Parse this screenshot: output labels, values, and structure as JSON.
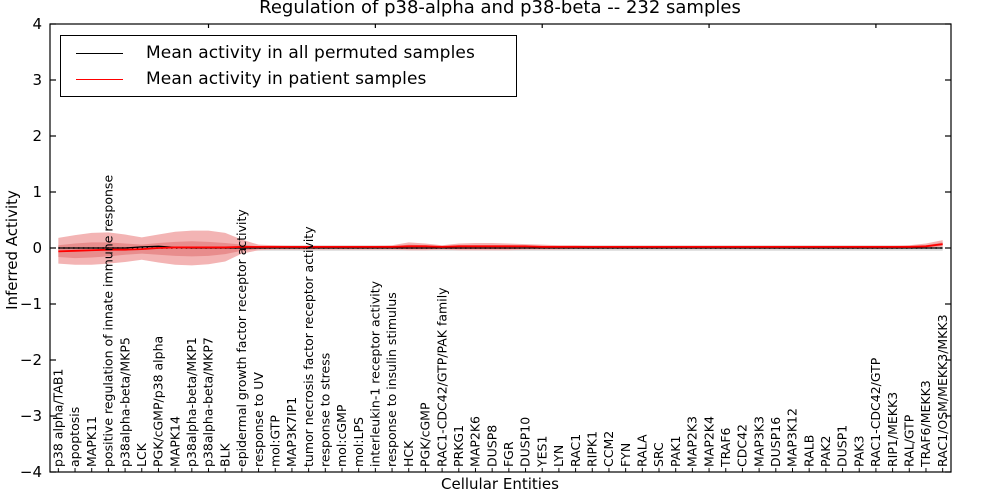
{
  "title": "Regulation of p38-alpha and p38-beta -- 232 samples",
  "axes": {
    "xlabel": "Cellular Entities",
    "ylabel": "Inferred Activity",
    "yticks": [
      4,
      3,
      2,
      1,
      0,
      -1,
      -2,
      -3,
      -4
    ],
    "ylim": [
      -4,
      4
    ]
  },
  "legend": {
    "items": [
      {
        "label": "Mean activity in all permuted samples",
        "color": "#000000"
      },
      {
        "label": "Mean activity in patient samples",
        "color": "#ff0000"
      }
    ],
    "position": "upper left"
  },
  "chart_data": {
    "type": "line",
    "title": "Regulation of p38-alpha and p38-beta -- 232 samples",
    "xlabel": "Cellular Entities",
    "ylabel": "Inferred Activity",
    "ylim": [
      -4,
      4
    ],
    "grid": false,
    "legend_position": "upper left",
    "categories": [
      "p38 alpha/TAB1",
      "apoptosis",
      "MAPK11",
      "positive regulation of innate immune response",
      "p38alpha-beta/MKP5",
      "LCK",
      "PGK/cGMP/p38 alpha",
      "MAPK14",
      "p38alpha-beta/MKP1",
      "p38alpha-beta/MKP7",
      "BLK",
      "epidermal growth factor receptor activity",
      "response to UV",
      "mol:GTP",
      "MAP3K7IP1",
      "tumor necrosis factor receptor activity",
      "response to stress",
      "mol:cGMP",
      "mol:LPS",
      "interleukin-1 receptor activity",
      "response to insulin stimulus",
      "HCK",
      "PGK/cGMP",
      "RAC1-CDC42/GTP/PAK family",
      "PRKG1",
      "MAP2K6",
      "DUSP8",
      "FGR",
      "DUSP10",
      "YES1",
      "LYN",
      "RAC1",
      "RIPK1",
      "CCM2",
      "FYN",
      "RALA",
      "SRC",
      "PAK1",
      "MAP2K3",
      "MAP2K4",
      "TRAF6",
      "CDC42",
      "MAP3K3",
      "DUSP16",
      "MAP3K12",
      "RALB",
      "PAK2",
      "DUSP1",
      "PAK3",
      "RAC1-CDC42/GTP",
      "RIP1/MEKK3",
      "RAL/GTP",
      "TRAF6/MEKK3",
      "RAC1/OSM/MEKK3/MKK3"
    ],
    "reference_line": {
      "y": 0,
      "style": "dotted",
      "color": "#000000"
    },
    "series": [
      {
        "name": "Mean activity in all permuted samples",
        "color": "#000000",
        "style": "solid",
        "values": [
          0,
          0,
          0,
          0,
          0,
          0.02,
          0.03,
          0.01,
          0,
          0,
          0,
          0,
          0,
          0,
          0,
          0,
          0,
          0,
          0,
          0,
          0,
          0,
          0,
          0,
          0,
          0,
          0,
          0,
          0,
          0,
          0,
          0,
          0,
          0,
          0,
          0,
          0,
          0,
          0,
          0,
          0,
          0,
          0,
          0,
          0,
          0,
          0,
          0,
          0,
          0,
          0,
          0,
          0,
          0
        ]
      },
      {
        "name": "Mean activity in patient samples",
        "color": "#ff0000",
        "style": "solid",
        "values": [
          -0.06,
          -0.05,
          -0.04,
          -0.03,
          -0.03,
          -0.02,
          0.0,
          0.01,
          0.01,
          0.01,
          0.01,
          0.02,
          0.02,
          0.02,
          0.02,
          0.02,
          0.02,
          0.02,
          0.02,
          0.02,
          0.02,
          0.03,
          0.03,
          0.02,
          0.03,
          0.03,
          0.03,
          0.03,
          0.03,
          0.02,
          0.02,
          0.02,
          0.02,
          0.02,
          0.02,
          0.02,
          0.02,
          0.02,
          0.02,
          0.02,
          0.02,
          0.02,
          0.02,
          0.02,
          0.02,
          0.02,
          0.02,
          0.02,
          0.02,
          0.02,
          0.02,
          0.02,
          0.03,
          0.07
        ]
      }
    ],
    "bands": [
      {
        "name": "permuted-std-band",
        "color": "#d9d9d9",
        "upper_const": 0.05,
        "lower_const": -0.05
      },
      {
        "name": "patient-outer-band",
        "color": "#f3b4b4",
        "upper": [
          0.18,
          0.23,
          0.27,
          0.28,
          0.24,
          0.19,
          0.24,
          0.29,
          0.31,
          0.31,
          0.27,
          0.15,
          0.06,
          0.05,
          0.04,
          0.04,
          0.04,
          0.04,
          0.04,
          0.04,
          0.05,
          0.1,
          0.08,
          0.05,
          0.08,
          0.09,
          0.09,
          0.08,
          0.07,
          0.06,
          0.05,
          0.05,
          0.04,
          0.04,
          0.04,
          0.04,
          0.04,
          0.04,
          0.04,
          0.04,
          0.04,
          0.04,
          0.04,
          0.04,
          0.04,
          0.04,
          0.04,
          0.04,
          0.04,
          0.04,
          0.04,
          0.05,
          0.08,
          0.14
        ],
        "lower": [
          -0.28,
          -0.3,
          -0.3,
          -0.28,
          -0.25,
          -0.21,
          -0.26,
          -0.3,
          -0.31,
          -0.29,
          -0.24,
          -0.1,
          -0.04,
          -0.03,
          -0.03,
          -0.03,
          -0.03,
          -0.03,
          -0.03,
          -0.03,
          -0.03,
          -0.04,
          -0.04,
          -0.03,
          -0.04,
          -0.04,
          -0.04,
          -0.04,
          -0.03,
          -0.03,
          -0.03,
          -0.02,
          -0.02,
          -0.02,
          -0.02,
          -0.02,
          -0.02,
          -0.02,
          -0.02,
          -0.02,
          -0.02,
          -0.02,
          -0.02,
          -0.02,
          -0.02,
          -0.02,
          -0.02,
          -0.02,
          -0.02,
          -0.02,
          -0.02,
          -0.01,
          0.0,
          0.02
        ]
      },
      {
        "name": "patient-inner-band",
        "color": "#e88d8d",
        "upper": [
          0.05,
          0.08,
          0.1,
          0.1,
          0.08,
          0.06,
          0.09,
          0.11,
          0.12,
          0.11,
          0.09,
          0.06,
          0.03,
          0.03,
          0.03,
          0.03,
          0.03,
          0.03,
          0.03,
          0.03,
          0.03,
          0.06,
          0.05,
          0.03,
          0.05,
          0.05,
          0.05,
          0.05,
          0.04,
          0.04,
          0.03,
          0.03,
          0.03,
          0.03,
          0.03,
          0.03,
          0.03,
          0.03,
          0.03,
          0.03,
          0.03,
          0.03,
          0.03,
          0.03,
          0.03,
          0.03,
          0.03,
          0.03,
          0.03,
          0.03,
          0.03,
          0.04,
          0.05,
          0.1
        ],
        "lower": [
          -0.16,
          -0.18,
          -0.17,
          -0.15,
          -0.12,
          -0.1,
          -0.12,
          -0.14,
          -0.15,
          -0.14,
          -0.11,
          -0.05,
          -0.02,
          -0.01,
          -0.01,
          -0.01,
          -0.01,
          -0.01,
          -0.01,
          -0.01,
          -0.01,
          -0.02,
          -0.02,
          -0.01,
          -0.02,
          -0.02,
          -0.02,
          -0.02,
          -0.01,
          -0.01,
          -0.01,
          -0.01,
          -0.01,
          -0.01,
          -0.01,
          -0.01,
          -0.01,
          -0.01,
          -0.01,
          -0.01,
          -0.01,
          -0.01,
          -0.01,
          -0.01,
          -0.01,
          -0.01,
          -0.01,
          -0.01,
          -0.01,
          -0.01,
          -0.01,
          0.0,
          0.01,
          0.04
        ]
      }
    ]
  }
}
